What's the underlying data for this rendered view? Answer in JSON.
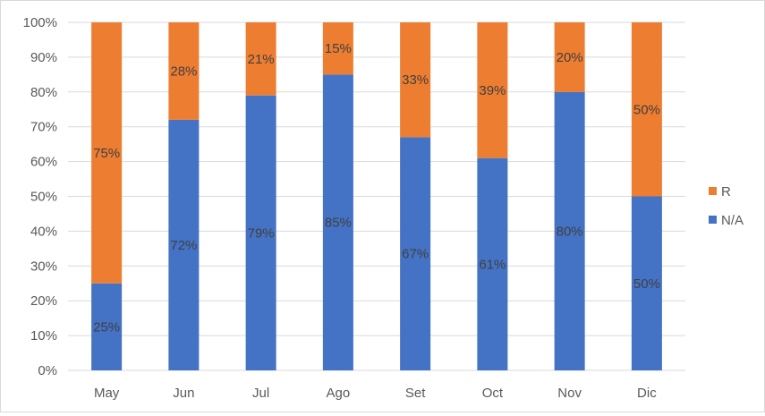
{
  "chart_data": {
    "type": "bar",
    "stacked": true,
    "percent_stacked": true,
    "categories": [
      "May",
      "Jun",
      "Jul",
      "Ago",
      "Set",
      "Oct",
      "Nov",
      "Dic"
    ],
    "series": [
      {
        "name": "N/A",
        "color": "#4472C4",
        "values": [
          25,
          72,
          79,
          85,
          67,
          61,
          80,
          50
        ],
        "labels": [
          "25%",
          "72%",
          "79%",
          "85%",
          "67%",
          "61%",
          "80%",
          "50%"
        ]
      },
      {
        "name": "R",
        "color": "#ED7D31",
        "values": [
          75,
          28,
          21,
          15,
          33,
          39,
          20,
          50
        ],
        "labels": [
          "75%",
          "28%",
          "21%",
          "15%",
          "33%",
          "39%",
          "20%",
          "50%"
        ]
      }
    ],
    "y_ticks": [
      "0%",
      "10%",
      "20%",
      "30%",
      "40%",
      "50%",
      "60%",
      "70%",
      "80%",
      "90%",
      "100%"
    ],
    "ylim": [
      0,
      100
    ],
    "grid": true,
    "legend_position": "right",
    "legend": [
      {
        "name": "R",
        "color": "#ED7D31"
      },
      {
        "name": "N/A",
        "color": "#4472C4"
      }
    ]
  }
}
